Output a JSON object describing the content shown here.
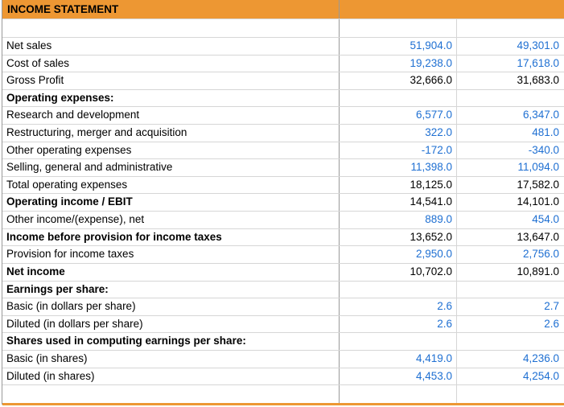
{
  "title": "INCOME STATEMENT",
  "colors": {
    "header_background": "#ED9733",
    "input_value_blue": "#1E6FD2",
    "calculated_value_black": "#000000",
    "grid_line": "#D6D6D6",
    "column_divider": "#999999"
  },
  "rows": [
    {
      "label": "Net sales",
      "bold": false,
      "value_color": "blue",
      "values": [
        "51,904.0",
        "49,301.0"
      ]
    },
    {
      "label": "Cost of sales",
      "bold": false,
      "value_color": "blue",
      "values": [
        "19,238.0",
        "17,618.0"
      ]
    },
    {
      "label": "Gross Profit",
      "bold": false,
      "value_color": "black",
      "values": [
        "32,666.0",
        "31,683.0"
      ]
    },
    {
      "label": "Operating expenses:",
      "bold": true,
      "value_color": "black",
      "values": [
        "",
        ""
      ]
    },
    {
      "label": "Research and development",
      "bold": false,
      "value_color": "blue",
      "values": [
        "6,577.0",
        "6,347.0"
      ]
    },
    {
      "label": "Restructuring, merger and acquisition",
      "bold": false,
      "value_color": "blue",
      "values": [
        "322.0",
        "481.0"
      ]
    },
    {
      "label": "Other operating expenses",
      "bold": false,
      "value_color": "blue",
      "values": [
        "-172.0",
        "-340.0"
      ]
    },
    {
      "label": "Selling, general and administrative",
      "bold": false,
      "value_color": "blue",
      "values": [
        "11,398.0",
        "11,094.0"
      ]
    },
    {
      "label": "Total operating expenses",
      "bold": false,
      "value_color": "black",
      "values": [
        "18,125.0",
        "17,582.0"
      ]
    },
    {
      "label": "Operating income / EBIT",
      "bold": true,
      "value_color": "black",
      "values": [
        "14,541.0",
        "14,101.0"
      ]
    },
    {
      "label": "Other income/(expense), net",
      "bold": false,
      "value_color": "blue",
      "values": [
        "889.0",
        "454.0"
      ]
    },
    {
      "label": "Income before provision for income taxes",
      "bold": true,
      "value_color": "black",
      "values": [
        "13,652.0",
        "13,647.0"
      ]
    },
    {
      "label": "Provision for income taxes",
      "bold": false,
      "value_color": "blue",
      "values": [
        "2,950.0",
        "2,756.0"
      ]
    },
    {
      "label": "Net income",
      "bold": true,
      "value_color": "black",
      "values": [
        "10,702.0",
        "10,891.0"
      ]
    },
    {
      "label": "Earnings per share:",
      "bold": true,
      "value_color": "black",
      "values": [
        "",
        ""
      ]
    },
    {
      "label": "Basic (in dollars per share)",
      "bold": false,
      "value_color": "blue",
      "values": [
        "2.6",
        "2.7"
      ]
    },
    {
      "label": "Diluted (in dollars per share)",
      "bold": false,
      "value_color": "blue",
      "values": [
        "2.6",
        "2.6"
      ]
    },
    {
      "label": "Shares used in computing earnings per share:",
      "bold": true,
      "value_color": "black",
      "values": [
        "",
        ""
      ]
    },
    {
      "label": "Basic (in shares)",
      "bold": false,
      "value_color": "blue",
      "values": [
        "4,419.0",
        "4,236.0"
      ]
    },
    {
      "label": "Diluted (in shares)",
      "bold": false,
      "value_color": "blue",
      "values": [
        "4,453.0",
        "4,254.0"
      ]
    },
    {
      "label": "",
      "bold": false,
      "value_color": "black",
      "values": [
        "",
        ""
      ]
    }
  ]
}
